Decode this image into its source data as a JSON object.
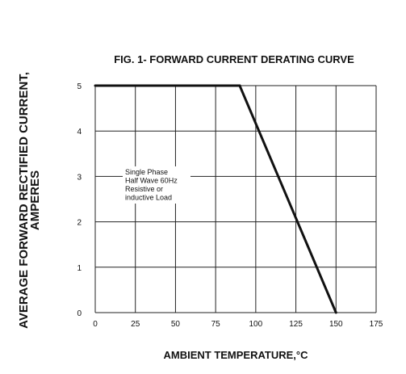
{
  "chart_data": {
    "type": "line",
    "title": "FIG. 1- FORWARD CURRENT DERATING CURVE",
    "xlabel": "AMBIENT TEMPERATURE,°C",
    "ylabel_lines": [
      "AVERAGE FORWARD RECTIFIED CURRENT,",
      "AMPERES"
    ],
    "xlim": [
      0,
      175
    ],
    "ylim": [
      0,
      5
    ],
    "x_ticks": [
      "0",
      "25",
      "50",
      "75",
      "100",
      "125",
      "150",
      "175"
    ],
    "y_ticks": [
      "0",
      "1",
      "2",
      "3",
      "4",
      "5"
    ],
    "grid": true,
    "series": [
      {
        "x": [
          0,
          90,
          150
        ],
        "y": [
          5,
          5,
          0
        ],
        "color": "#111111"
      }
    ],
    "annotation_lines": [
      "Single Phase",
      "Half Wave 60Hz",
      "Resistive or",
      "inductive Load"
    ]
  }
}
